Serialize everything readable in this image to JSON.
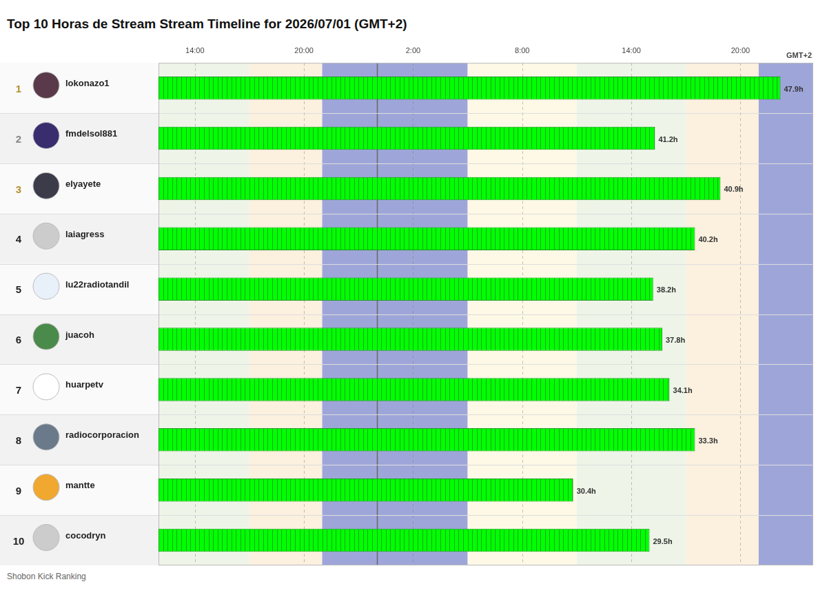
{
  "chart_data": {
    "type": "bar",
    "orientation": "horizontal",
    "title": "Top 10 Horas de Stream Stream Timeline for 2026/07/01 (GMT+2)",
    "footer": "Shobon Kick Ranking",
    "timezone_label": "GMT+2",
    "ranks": [
      1,
      2,
      3,
      4,
      5,
      6,
      7,
      8,
      9,
      10
    ],
    "categories": [
      "lokonazo1",
      "fmdelsol881",
      "elyayete",
      "laiagress",
      "lu22radiotandil",
      "juacoh",
      "huarpetv",
      "radiocorporacion",
      "mantte",
      "cocodryn"
    ],
    "values": [
      [
        12,
        46.2
      ],
      [
        12,
        39.3
      ],
      [
        12,
        42.9
      ],
      [
        12,
        41.5
      ],
      [
        12,
        39.2
      ],
      [
        12,
        39.7
      ],
      [
        12,
        40.1
      ],
      [
        12,
        41.5
      ],
      [
        12,
        34.8
      ],
      [
        12,
        39.0
      ]
    ],
    "total_labels": [
      "47.9h",
      "41.2h",
      "40.9h",
      "40.2h",
      "38.2h",
      "37.8h",
      "34.1h",
      "33.3h",
      "30.4h",
      "29.5h"
    ],
    "color": "#00ff00",
    "xlim": [
      12,
      48
    ],
    "xticks": [
      {
        "value": 14,
        "label": "14:00"
      },
      {
        "value": 20,
        "label": "20:00"
      },
      {
        "value": 26,
        "label": "2:00"
      },
      {
        "value": 32,
        "label": "8:00"
      },
      {
        "value": 38,
        "label": "14:00"
      },
      {
        "value": 44,
        "label": "20:00"
      }
    ],
    "bands": [
      {
        "from": 12,
        "to": 17,
        "color": "#eef5e8"
      },
      {
        "from": 17,
        "to": 21,
        "color": "#fcf0df"
      },
      {
        "from": 21,
        "to": 29,
        "color": "#9ea6d9"
      },
      {
        "from": 29,
        "to": 35,
        "color": "#fdf9e6"
      },
      {
        "from": 35,
        "to": 41,
        "color": "#eef5e8"
      },
      {
        "from": 41,
        "to": 45,
        "color": "#fcf0df"
      },
      {
        "from": 45,
        "to": 48,
        "color": "#9ea6d9"
      }
    ],
    "day_boundary": 24,
    "grid": true
  }
}
